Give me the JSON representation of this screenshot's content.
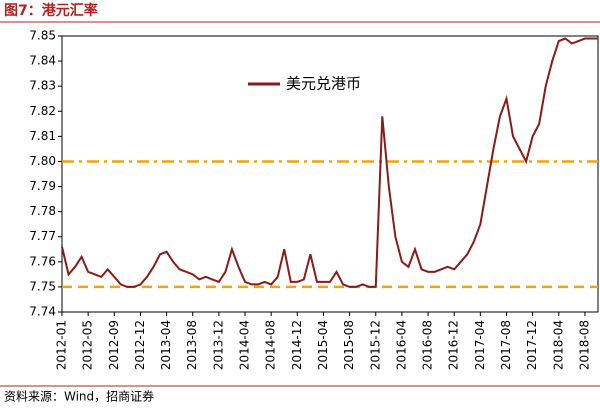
{
  "chart_data": {
    "type": "line",
    "title": "图7：港元汇率",
    "source": "资料来源：Wind，招商证券",
    "categories": [
      "2012-01",
      null,
      null,
      null,
      "2012-05",
      null,
      null,
      null,
      "2012-09",
      null,
      null,
      null,
      "2012-12",
      null,
      null,
      null,
      "2013-04",
      null,
      null,
      null,
      "2013-08",
      null,
      null,
      null,
      "2013-12",
      null,
      null,
      null,
      "2014-04",
      null,
      null,
      null,
      "2014-08",
      null,
      null,
      null,
      "2014-12",
      null,
      null,
      null,
      "2015-04",
      null,
      null,
      null,
      "2015-08",
      null,
      null,
      null,
      "2015-12",
      null,
      null,
      null,
      "2016-04",
      null,
      null,
      null,
      "2016-08",
      null,
      null,
      null,
      "2016-12",
      null,
      null,
      null,
      "2017-04",
      null,
      null,
      null,
      "2017-08",
      null,
      null,
      null,
      "2017-12",
      null,
      null,
      null,
      "2018-04",
      null,
      null,
      null,
      "2018-08",
      null,
      null
    ],
    "series": [
      {
        "name": "美元兑港币",
        "color": "#8b1a1a",
        "values": [
          7.766,
          7.755,
          7.758,
          7.762,
          7.756,
          7.755,
          7.754,
          7.757,
          7.754,
          7.751,
          7.75,
          7.75,
          7.751,
          7.754,
          7.758,
          7.763,
          7.764,
          7.76,
          7.757,
          7.756,
          7.755,
          7.753,
          7.754,
          7.753,
          7.752,
          7.756,
          7.765,
          7.758,
          7.752,
          7.751,
          7.751,
          7.752,
          7.751,
          7.754,
          7.765,
          7.752,
          7.752,
          7.753,
          7.763,
          7.752,
          7.752,
          7.752,
          7.756,
          7.751,
          7.75,
          7.75,
          7.751,
          7.75,
          7.75,
          7.818,
          7.79,
          7.77,
          7.76,
          7.758,
          7.765,
          7.757,
          7.756,
          7.756,
          7.757,
          7.758,
          7.757,
          7.76,
          7.763,
          7.768,
          7.775,
          7.79,
          7.805,
          7.818,
          7.825,
          7.81,
          7.805,
          7.8,
          7.81,
          7.815,
          7.83,
          7.84,
          7.848,
          7.849,
          7.847,
          7.848,
          7.849,
          7.849,
          7.849
        ]
      }
    ],
    "ylim": [
      7.74,
      7.85
    ],
    "yticks": [
      7.74,
      7.75,
      7.76,
      7.77,
      7.78,
      7.79,
      {
        "value": 7.8,
        "label": "7.80"
      },
      7.81,
      7.82,
      7.83,
      7.84,
      7.85
    ],
    "reference_lines": [
      {
        "value": 7.8,
        "style": "dashdot"
      },
      {
        "value": 7.75,
        "style": "dashed"
      }
    ],
    "reference_color": "#f0a30a",
    "legend": "top"
  }
}
